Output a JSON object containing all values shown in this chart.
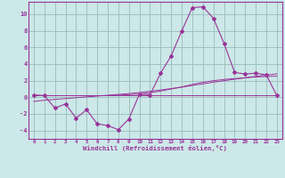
{
  "x": [
    0,
    1,
    2,
    3,
    4,
    5,
    6,
    7,
    8,
    9,
    10,
    11,
    12,
    13,
    14,
    15,
    16,
    17,
    18,
    19,
    20,
    21,
    22,
    23
  ],
  "temperature": [
    0.3,
    0.2,
    -1.3,
    -0.8,
    -2.5,
    -1.5,
    -3.2,
    -3.4,
    -3.9,
    -2.6,
    0.4,
    0.3,
    2.9,
    5.0,
    8.0,
    10.8,
    10.9,
    9.5,
    6.5,
    3.0,
    2.8,
    2.9,
    2.7,
    0.2
  ],
  "linear_fit1": [
    0.28,
    0.28,
    0.28,
    0.28,
    0.28,
    0.28,
    0.28,
    0.28,
    0.28,
    0.28,
    0.28,
    0.28,
    0.28,
    0.28,
    0.28,
    0.28,
    0.28,
    0.28,
    0.28,
    0.28,
    0.28,
    0.28,
    0.28,
    0.28
  ],
  "linear_fit2": [
    0.2,
    0.2,
    0.2,
    0.2,
    0.2,
    0.2,
    0.2,
    0.2,
    0.25,
    0.32,
    0.4,
    0.55,
    0.75,
    1.0,
    1.25,
    1.55,
    1.8,
    2.0,
    2.15,
    2.25,
    2.35,
    2.45,
    2.5,
    2.55
  ],
  "linear_fit3": [
    -0.5,
    -0.35,
    -0.25,
    -0.15,
    -0.05,
    0.05,
    0.15,
    0.25,
    0.35,
    0.45,
    0.58,
    0.72,
    0.88,
    1.05,
    1.22,
    1.42,
    1.62,
    1.82,
    2.0,
    2.18,
    2.35,
    2.52,
    2.68,
    2.82
  ],
  "bg_color": "#cce8e8",
  "line_color": "#993399",
  "grid_color": "#99bbbb",
  "xlabel": "Windchill (Refroidissement éolien,°C)",
  "ylim": [
    -5,
    11.5
  ],
  "xlim": [
    -0.5,
    23.5
  ],
  "yticks": [
    -4,
    -2,
    0,
    2,
    4,
    6,
    8,
    10
  ],
  "xticks": [
    0,
    1,
    2,
    3,
    4,
    5,
    6,
    7,
    8,
    9,
    10,
    11,
    12,
    13,
    14,
    15,
    16,
    17,
    18,
    19,
    20,
    21,
    22,
    23
  ]
}
